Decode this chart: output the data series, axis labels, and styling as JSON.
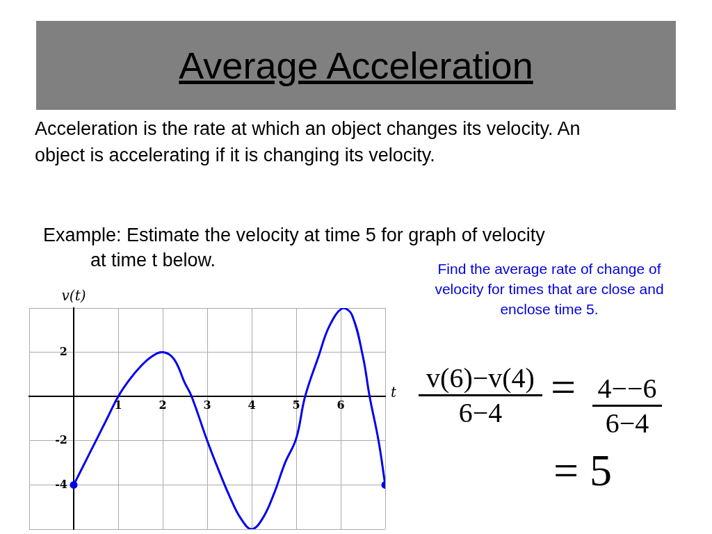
{
  "chart_data": {
    "type": "line",
    "title": "Average Acceleration",
    "xlabel": "t",
    "ylabel": "v(t)",
    "annotations": [
      "Acceleration is the rate at which an object changes its velocity. An object is accelerating if it is changing its velocity.",
      "Example:  Estimate the velocity at time 5 for graph of velocity at time t below.",
      "Find the average rate of change of velocity for times that are close and enclose time 5.",
      "v(6)−v(4)",
      "6−4",
      "=",
      "4−−6",
      "6−4",
      "= 5"
    ],
    "series": [
      {
        "type": "line",
        "color": "#0000ee",
        "x": [
          0,
          0.25,
          0.5,
          0.75,
          1,
          1.25,
          1.5,
          1.75,
          2,
          2.25,
          2.5,
          2.65,
          3,
          3.25,
          3.5,
          3.75,
          4,
          4.25,
          4.5,
          4.75,
          5,
          5.2,
          5.5,
          5.75,
          6.05,
          6.25,
          6.5,
          6.65,
          6.85,
          7
        ],
        "values": [
          -4,
          -3,
          -2,
          -1,
          0,
          0.75,
          1.35,
          1.8,
          2,
          1.7,
          0.6,
          0,
          -2,
          -3.3,
          -4.5,
          -5.5,
          -6,
          -5.5,
          -4.4,
          -3,
          -1.9,
          0,
          1.8,
          3.2,
          4,
          3.7,
          1.8,
          0,
          -2,
          -4
        ]
      },
      {
        "type": "scatter",
        "color": "#0000ee",
        "x": [
          0,
          7
        ],
        "values": [
          -4,
          -4
        ]
      }
    ],
    "xlim": [
      -1,
      7
    ],
    "xticks": [
      {
        "value": -1,
        "label": null
      },
      {
        "value": 0,
        "label": null
      },
      1,
      2,
      3,
      4,
      5,
      6,
      {
        "value": 7,
        "label": null
      }
    ],
    "ylim": [
      -6,
      4
    ],
    "yticks": [
      {
        "value": -6,
        "label": null
      },
      -4,
      -2,
      {
        "value": 0,
        "label": null
      },
      2,
      {
        "value": 4,
        "label": null
      }
    ],
    "grid": true,
    "legend": false
  }
}
